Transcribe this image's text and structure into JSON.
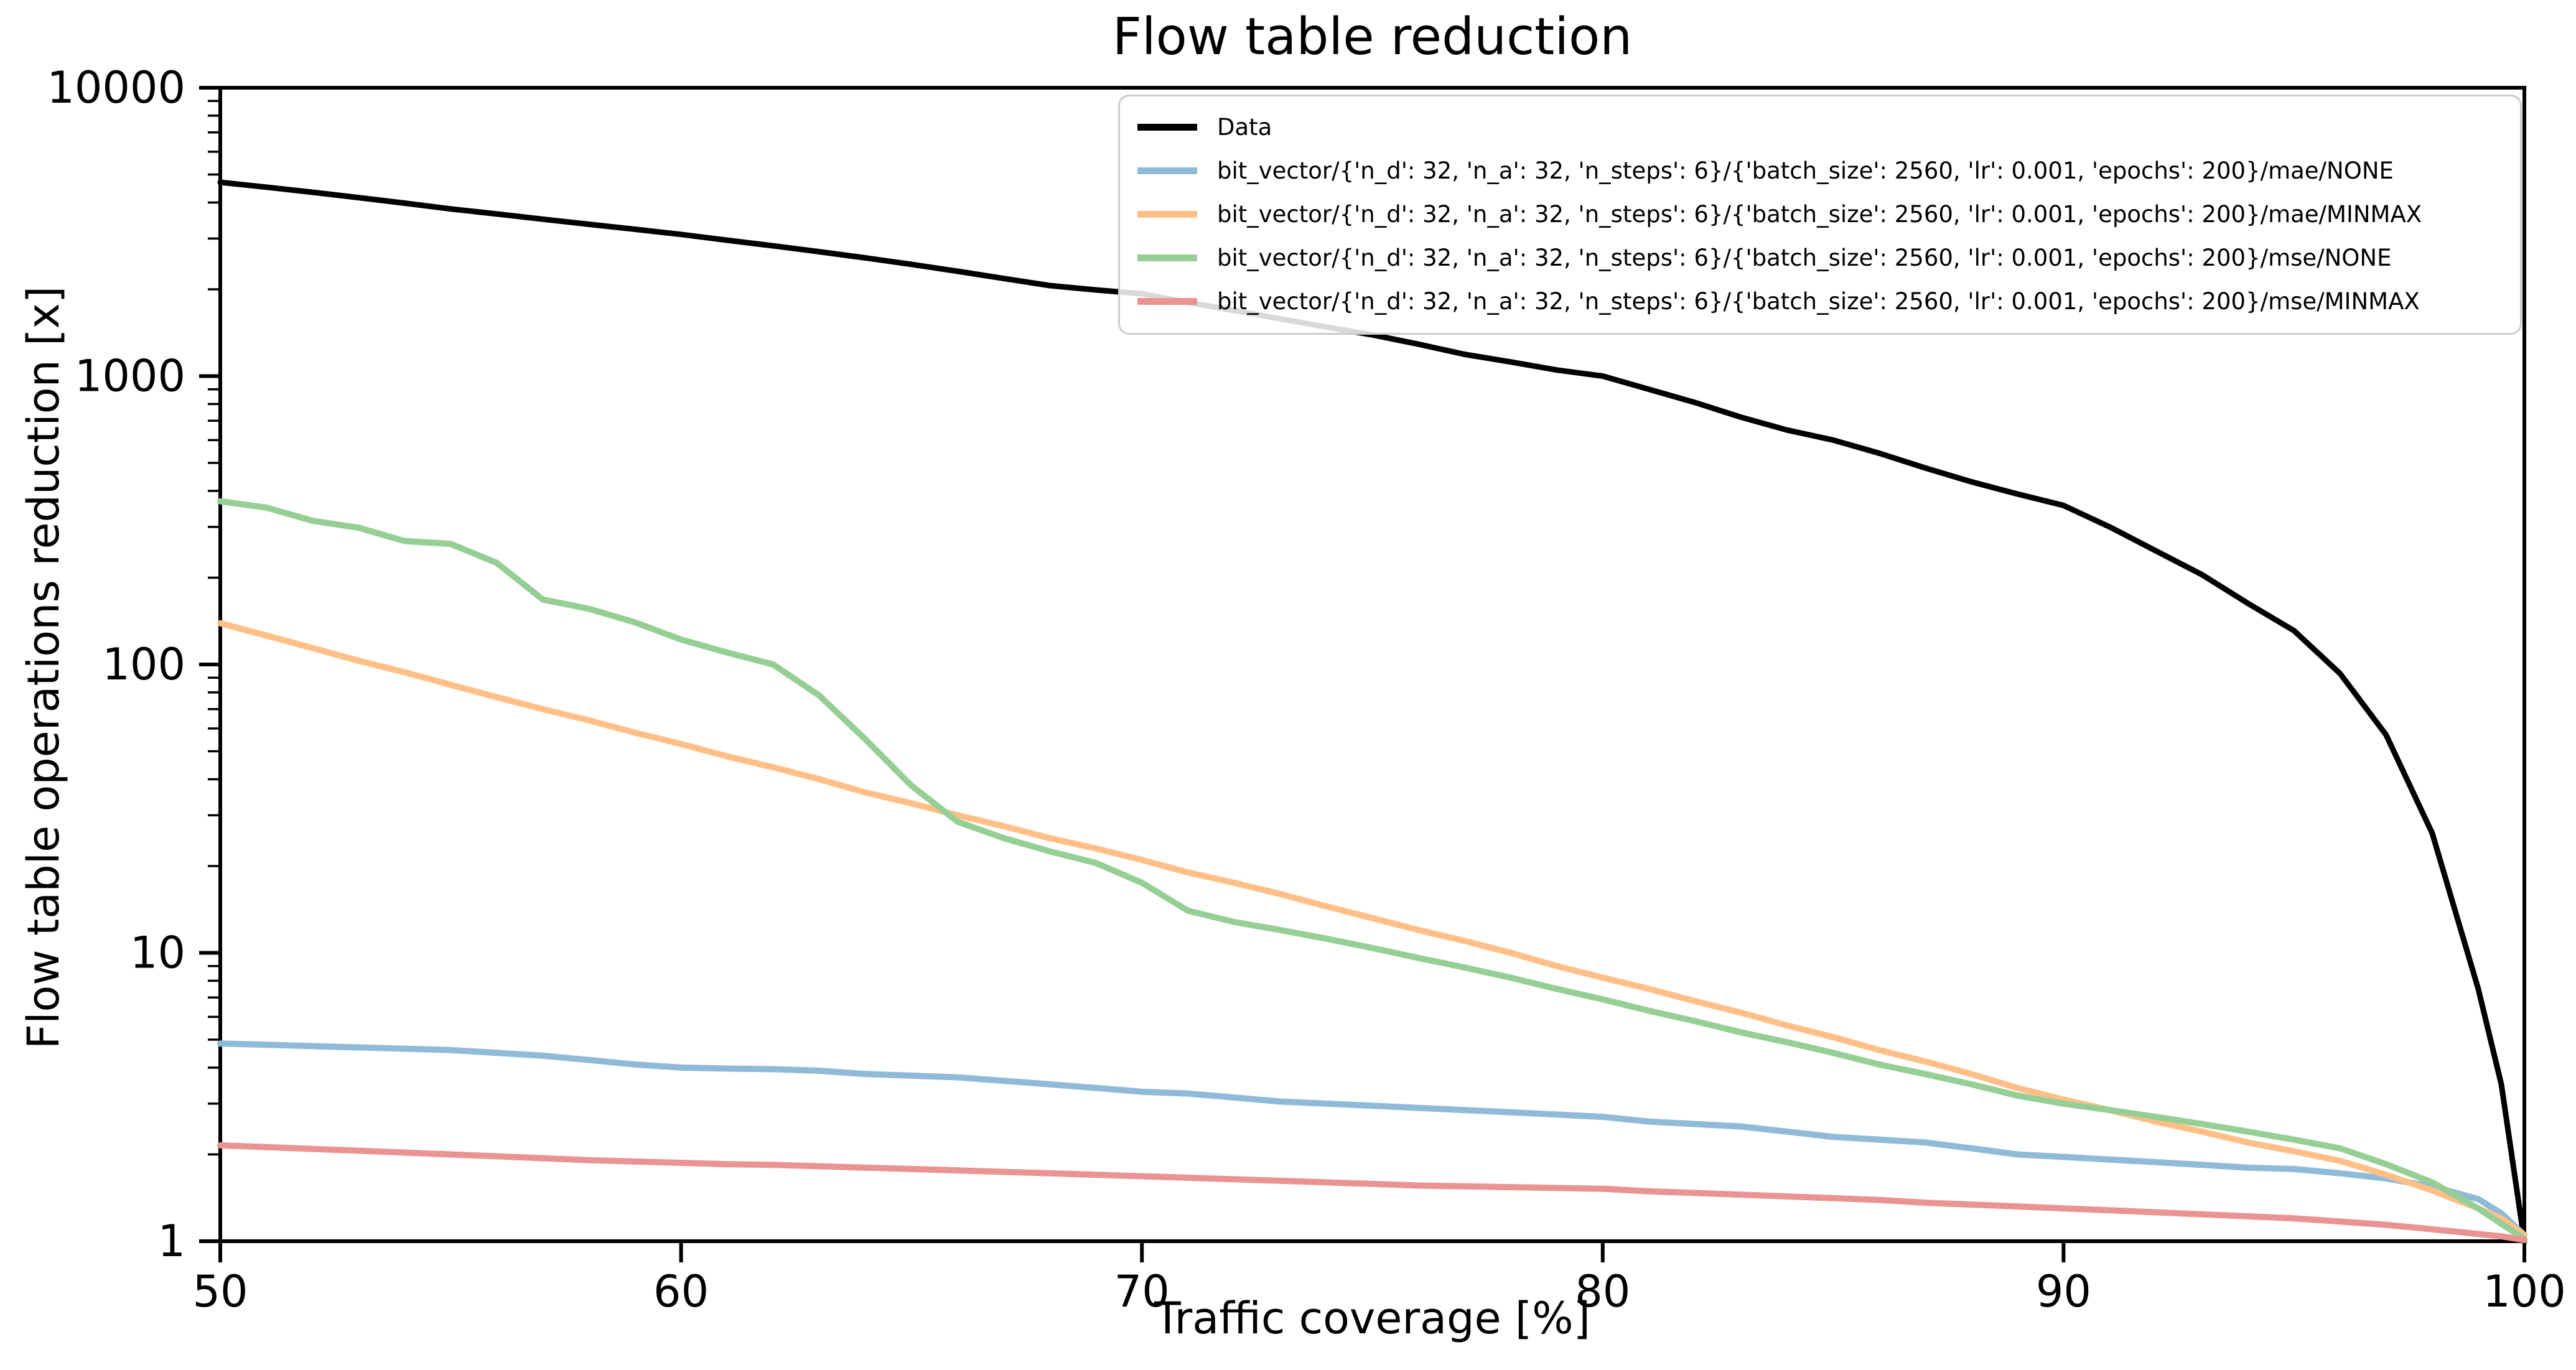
{
  "figure": {
    "title": "Flow table reduction",
    "xlabel": "Traffic coverage [%]",
    "ylabel": "Flow table operations reduction [x]"
  },
  "legend": {
    "position": "upper right",
    "entries": [
      "Data",
      "bit_vector/{'n_d': 32, 'n_a': 32, 'n_steps': 6}/{'batch_size': 2560, 'lr': 0.001, 'epochs': 200}/mae/NONE",
      "bit_vector/{'n_d': 32, 'n_a': 32, 'n_steps': 6}/{'batch_size': 2560, 'lr': 0.001, 'epochs': 200}/mae/MINMAX",
      "bit_vector/{'n_d': 32, 'n_a': 32, 'n_steps': 6}/{'batch_size': 2560, 'lr': 0.001, 'epochs': 200}/mse/NONE",
      "bit_vector/{'n_d': 32, 'n_a': 32, 'n_steps': 6}/{'batch_size': 2560, 'lr': 0.001, 'epochs': 200}/mse/MINMAX"
    ]
  },
  "chart_data": {
    "type": "line",
    "title": "Flow table reduction",
    "xlabel": "Traffic coverage [%]",
    "ylabel": "Flow table operations reduction [x]",
    "xlim": [
      50,
      100
    ],
    "ylim": [
      1,
      10000
    ],
    "yscale": "log",
    "grid": false,
    "legend_position": "upper right",
    "x_ticks": [
      50,
      60,
      70,
      80,
      90,
      100
    ],
    "y_ticks": [
      1,
      10,
      100,
      1000,
      10000
    ],
    "y_tick_labels": [
      "1",
      "10",
      "100",
      "1000",
      "10000"
    ],
    "axis_color": "#000000",
    "background_color": "#ffffff",
    "x": [
      50,
      51,
      52,
      53,
      54,
      55,
      56,
      57,
      58,
      59,
      60,
      61,
      62,
      63,
      64,
      65,
      66,
      67,
      68,
      69,
      70,
      71,
      72,
      73,
      74,
      75,
      76,
      77,
      78,
      79,
      80,
      81,
      82,
      83,
      84,
      85,
      86,
      87,
      88,
      89,
      90,
      91,
      92,
      93,
      94,
      95,
      96,
      97,
      98,
      99,
      99.5,
      100
    ],
    "series": [
      {
        "name": "Data",
        "slug": "data",
        "color": "#000000",
        "linewidth": 9,
        "values": [
          4700,
          4520,
          4340,
          4160,
          3980,
          3800,
          3650,
          3500,
          3360,
          3230,
          3100,
          2960,
          2830,
          2700,
          2570,
          2440,
          2310,
          2180,
          2060,
          1990,
          1930,
          1800,
          1690,
          1580,
          1480,
          1390,
          1290,
          1190,
          1120,
          1050,
          1000,
          900,
          810,
          720,
          650,
          600,
          540,
          480,
          430,
          390,
          356,
          300,
          248,
          205,
          163,
          131,
          93,
          57,
          26,
          7.5,
          3.5,
          1.0
        ]
      },
      {
        "name": "bit_vector/{'n_d': 32, 'n_a': 32, 'n_steps': 6}/{'batch_size': 2560, 'lr': 0.001, 'epochs': 200}/mae/NONE",
        "slug": "mae-none",
        "color": "#8fbbd9",
        "linewidth": 10,
        "values": [
          4.85,
          4.8,
          4.75,
          4.7,
          4.65,
          4.6,
          4.5,
          4.4,
          4.25,
          4.1,
          4.0,
          3.97,
          3.95,
          3.9,
          3.8,
          3.75,
          3.7,
          3.6,
          3.5,
          3.4,
          3.3,
          3.25,
          3.15,
          3.05,
          3.0,
          2.95,
          2.9,
          2.85,
          2.8,
          2.75,
          2.7,
          2.6,
          2.55,
          2.5,
          2.4,
          2.3,
          2.25,
          2.2,
          2.1,
          2.0,
          1.96,
          1.92,
          1.88,
          1.84,
          1.8,
          1.78,
          1.72,
          1.65,
          1.55,
          1.4,
          1.25,
          1.05
        ]
      },
      {
        "name": "bit_vector/{'n_d': 32, 'n_a': 32, 'n_steps': 6}/{'batch_size': 2560, 'lr': 0.001, 'epochs': 200}/mae/MINMAX",
        "slug": "mae-minmax",
        "color": "#ffbf86",
        "linewidth": 10,
        "values": [
          139,
          126,
          114,
          103,
          94,
          85,
          77,
          70,
          64,
          58,
          53,
          48,
          44,
          40,
          36,
          33,
          30,
          27.5,
          25,
          23,
          21,
          19,
          17.5,
          16,
          14.5,
          13.2,
          12,
          11,
          10,
          9,
          8.2,
          7.5,
          6.8,
          6.2,
          5.6,
          5.1,
          4.6,
          4.2,
          3.8,
          3.4,
          3.1,
          2.85,
          2.6,
          2.4,
          2.2,
          2.05,
          1.9,
          1.7,
          1.5,
          1.3,
          1.2,
          1.05
        ]
      },
      {
        "name": "bit_vector/{'n_d': 32, 'n_a': 32, 'n_steps': 6}/{'batch_size': 2560, 'lr': 0.001, 'epochs': 200}/mse/NONE",
        "slug": "mse-none",
        "color": "#95cf95",
        "linewidth": 10,
        "values": [
          368,
          350,
          315,
          298,
          268,
          262,
          225,
          168,
          156,
          140,
          122,
          110,
          100,
          78,
          55,
          38,
          28.5,
          25,
          22.5,
          20.5,
          17.5,
          14,
          12.8,
          12,
          11.2,
          10.4,
          9.6,
          8.9,
          8.2,
          7.5,
          6.9,
          6.3,
          5.8,
          5.3,
          4.9,
          4.5,
          4.1,
          3.8,
          3.5,
          3.2,
          3.0,
          2.85,
          2.7,
          2.55,
          2.4,
          2.25,
          2.1,
          1.85,
          1.6,
          1.3,
          1.15,
          1.02
        ]
      },
      {
        "name": "bit_vector/{'n_d': 32, 'n_a': 32, 'n_steps': 6}/{'batch_size': 2560, 'lr': 0.001, 'epochs': 200}/mse/MINMAX",
        "slug": "mse-minmax",
        "color": "#ea9393",
        "linewidth": 10,
        "values": [
          2.15,
          2.12,
          2.09,
          2.06,
          2.03,
          2.0,
          1.97,
          1.94,
          1.91,
          1.89,
          1.87,
          1.85,
          1.84,
          1.82,
          1.8,
          1.78,
          1.76,
          1.74,
          1.72,
          1.7,
          1.68,
          1.66,
          1.64,
          1.62,
          1.6,
          1.58,
          1.56,
          1.55,
          1.54,
          1.53,
          1.52,
          1.49,
          1.47,
          1.45,
          1.43,
          1.41,
          1.39,
          1.36,
          1.34,
          1.32,
          1.3,
          1.28,
          1.26,
          1.24,
          1.22,
          1.2,
          1.17,
          1.14,
          1.1,
          1.06,
          1.04,
          1.01
        ]
      }
    ]
  }
}
